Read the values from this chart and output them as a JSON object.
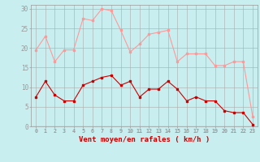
{
  "hours": [
    0,
    1,
    2,
    3,
    4,
    5,
    6,
    7,
    8,
    9,
    10,
    11,
    12,
    13,
    14,
    15,
    16,
    17,
    18,
    19,
    20,
    21,
    22,
    23
  ],
  "wind_mean": [
    7.5,
    11.5,
    8.0,
    6.5,
    6.5,
    10.5,
    11.5,
    12.5,
    13.0,
    10.5,
    11.5,
    7.5,
    9.5,
    9.5,
    11.5,
    9.5,
    6.5,
    7.5,
    6.5,
    6.5,
    4.0,
    3.5,
    3.5,
    0.5
  ],
  "wind_gust": [
    19.5,
    23.0,
    16.5,
    19.5,
    19.5,
    27.5,
    27.0,
    30.0,
    29.5,
    24.5,
    19.0,
    21.0,
    23.5,
    24.0,
    24.5,
    16.5,
    18.5,
    18.5,
    18.5,
    15.5,
    15.5,
    16.5,
    16.5,
    2.5
  ],
  "mean_color": "#cc0000",
  "gust_color": "#ff9999",
  "bg_color": "#c8eef0",
  "grid_color": "#aaaaaa",
  "xlabel": "Vent moyen/en rafales ( km/h )",
  "ylabel_ticks": [
    0,
    5,
    10,
    15,
    20,
    25,
    30
  ],
  "ylim": [
    0,
    31
  ],
  "xlim": [
    -0.5,
    23.5
  ]
}
